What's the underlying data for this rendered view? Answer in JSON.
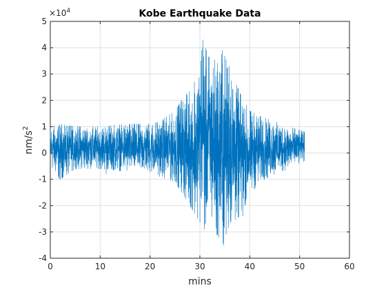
{
  "chart_data": {
    "type": "line",
    "title": "Kobe Earthquake Data",
    "xlabel": "mins",
    "ylabel_base": "nm/s",
    "ylabel_sup": "2",
    "y_exponent_label": "×10",
    "y_exponent_power": "4",
    "xlim": [
      0,
      60
    ],
    "ylim": [
      -4,
      5
    ],
    "x_ticks": [
      "0",
      "10",
      "20",
      "30",
      "40",
      "50",
      "60"
    ],
    "y_ticks": [
      "-4",
      "-3",
      "-2",
      "-1",
      "0",
      "1",
      "2",
      "3",
      "4",
      "5"
    ],
    "grid": true,
    "line_color": "#0072BD",
    "series": [
      {
        "x_range": [
          0,
          51
        ],
        "envelope": [
          {
            "x": 0,
            "min": -0.5,
            "max": 1.0
          },
          {
            "x": 2,
            "min": -1.0,
            "max": 1.1
          },
          {
            "x": 5,
            "min": -0.6,
            "max": 1.0
          },
          {
            "x": 10,
            "min": -0.6,
            "max": 1.0
          },
          {
            "x": 15,
            "min": -0.7,
            "max": 1.1
          },
          {
            "x": 20,
            "min": -0.7,
            "max": 1.1
          },
          {
            "x": 22,
            "min": -0.9,
            "max": 1.2
          },
          {
            "x": 25,
            "min": -1.1,
            "max": 1.6
          },
          {
            "x": 27,
            "min": -1.7,
            "max": 2.2
          },
          {
            "x": 29,
            "min": -2.3,
            "max": 2.5
          },
          {
            "x": 30.5,
            "min": -2.8,
            "max": 4.3
          },
          {
            "x": 32,
            "min": -2.5,
            "max": 3.6
          },
          {
            "x": 33.5,
            "min": -3.1,
            "max": 3.5
          },
          {
            "x": 34.5,
            "min": -3.5,
            "max": 3.9
          },
          {
            "x": 36,
            "min": -2.7,
            "max": 3.2
          },
          {
            "x": 38,
            "min": -2.4,
            "max": 2.3
          },
          {
            "x": 40,
            "min": -1.6,
            "max": 1.6
          },
          {
            "x": 42,
            "min": -1.1,
            "max": 1.4
          },
          {
            "x": 45,
            "min": -0.8,
            "max": 1.2
          },
          {
            "x": 48,
            "min": -0.6,
            "max": 1.0
          },
          {
            "x": 51,
            "min": -0.3,
            "max": 0.8
          }
        ],
        "peaks": [
          {
            "x": 30.6,
            "y": 4.3
          },
          {
            "x": 34.5,
            "y": 3.9
          },
          {
            "x": 34.8,
            "y": -3.5
          },
          {
            "x": 33.4,
            "y": -3.1
          },
          {
            "x": 30.9,
            "y": -2.9
          },
          {
            "x": 35.9,
            "y": 3.3
          },
          {
            "x": 28.9,
            "y": 2.7
          },
          {
            "x": 38.6,
            "y": -2.4
          },
          {
            "x": 1.8,
            "y": -1.0
          },
          {
            "x": 11.2,
            "y": -0.8
          }
        ]
      }
    ]
  }
}
